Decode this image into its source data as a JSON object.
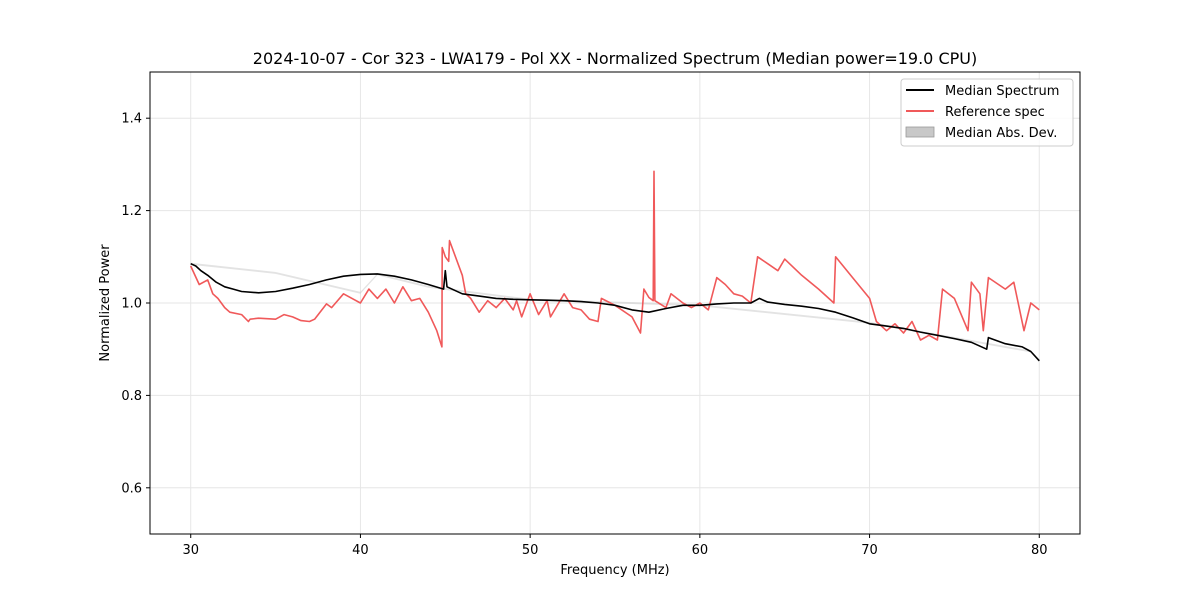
{
  "chart_data": {
    "type": "line",
    "title": "2024-10-07 - Cor 323 - LWA179 - Pol XX - Normalized Spectrum (Median power=19.0 CPU)",
    "xlabel": "Frequency (MHz)",
    "ylabel": "Normalized Power",
    "xlim": [
      27.6,
      82.4
    ],
    "ylim": [
      0.5,
      1.5
    ],
    "xticks": [
      30,
      40,
      50,
      60,
      70,
      80
    ],
    "yticks": [
      0.6,
      0.8,
      1.0,
      1.2,
      1.4
    ],
    "xtick_labels": [
      "30",
      "40",
      "50",
      "60",
      "70",
      "80"
    ],
    "ytick_labels": [
      "0.6",
      "0.8",
      "1.0",
      "1.2",
      "1.4"
    ],
    "grid": true,
    "legend_position": "top-right",
    "legend": [
      "Median Spectrum",
      "Reference spec",
      "Median Abs. Dev."
    ],
    "colors": {
      "median": "#000000",
      "reference": "#f0595a",
      "mad": "#c8c8c8"
    },
    "series": [
      {
        "name": "Median Spectrum",
        "x": [
          30,
          30.3,
          30.6,
          31,
          31.5,
          32,
          32.5,
          33,
          34,
          35,
          36,
          37,
          38,
          39,
          40,
          41,
          42,
          43,
          44,
          44.9,
          45,
          45.1,
          46,
          47,
          48,
          49,
          50,
          51,
          52,
          53,
          54,
          55,
          56,
          57,
          58,
          59,
          60,
          61,
          62,
          63,
          63.5,
          64,
          65,
          66,
          67,
          68,
          69,
          70,
          71,
          72,
          73,
          74,
          75,
          76,
          76.9,
          77,
          78,
          79,
          79.5,
          80
        ],
        "values": [
          1.085,
          1.08,
          1.07,
          1.06,
          1.045,
          1.035,
          1.03,
          1.025,
          1.022,
          1.025,
          1.032,
          1.04,
          1.05,
          1.058,
          1.062,
          1.063,
          1.058,
          1.05,
          1.04,
          1.03,
          1.07,
          1.035,
          1.02,
          1.015,
          1.01,
          1.008,
          1.007,
          1.006,
          1.005,
          1.003,
          1.0,
          0.995,
          0.985,
          0.98,
          0.988,
          0.995,
          0.995,
          0.998,
          1.0,
          1.0,
          1.01,
          1.002,
          0.997,
          0.993,
          0.988,
          0.98,
          0.968,
          0.955,
          0.95,
          0.945,
          0.937,
          0.93,
          0.923,
          0.915,
          0.9,
          0.925,
          0.912,
          0.905,
          0.895,
          0.875
        ]
      },
      {
        "name": "Reference spec",
        "x": [
          30,
          30.5,
          31,
          31.3,
          31.6,
          32,
          32.3,
          33,
          33.4,
          33.5,
          34,
          35,
          35.5,
          36,
          36.5,
          37,
          37.3,
          38,
          38.3,
          39,
          39.5,
          40,
          40.5,
          41,
          41.5,
          42,
          42.5,
          43,
          43.5,
          44,
          44.5,
          44.8,
          44.82,
          45,
          45.2,
          45.25,
          46,
          46.2,
          46.5,
          47,
          47.5,
          48,
          48.5,
          49,
          49.2,
          49.5,
          50,
          50.5,
          51,
          51.2,
          52,
          52.5,
          53,
          53.5,
          54,
          54.2,
          55,
          56,
          56.5,
          56.7,
          57,
          57.25,
          57.3,
          57.35,
          58,
          58.3,
          59,
          59.5,
          60,
          60.5,
          61,
          61.5,
          62,
          62.5,
          63,
          63.4,
          64,
          64.6,
          65,
          66,
          67,
          67.9,
          68,
          69,
          70,
          70.4,
          71,
          71.5,
          72,
          72.5,
          73,
          73.5,
          74,
          74.3,
          75,
          75.8,
          76,
          76.5,
          76.7,
          77,
          78,
          78.5,
          79.1,
          79.5,
          80
        ],
        "values": [
          1.08,
          1.04,
          1.05,
          1.02,
          1.01,
          0.99,
          0.98,
          0.975,
          0.96,
          0.965,
          0.967,
          0.965,
          0.975,
          0.97,
          0.962,
          0.96,
          0.965,
          0.998,
          0.99,
          1.02,
          1.01,
          1.0,
          1.03,
          1.01,
          1.03,
          1.0,
          1.035,
          1.005,
          1.01,
          0.98,
          0.94,
          0.905,
          1.12,
          1.1,
          1.09,
          1.135,
          1.06,
          1.02,
          1.01,
          0.98,
          1.005,
          0.99,
          1.01,
          0.985,
          1.005,
          0.97,
          1.02,
          0.975,
          1.005,
          0.97,
          1.02,
          0.99,
          0.985,
          0.965,
          0.96,
          1.01,
          0.995,
          0.97,
          0.935,
          1.03,
          1.012,
          1.005,
          1.285,
          1.005,
          0.99,
          1.02,
          1.0,
          0.99,
          1.0,
          0.985,
          1.055,
          1.04,
          1.02,
          1.015,
          1.0,
          1.1,
          1.085,
          1.07,
          1.095,
          1.06,
          1.03,
          1.0,
          1.1,
          1.055,
          1.01,
          0.96,
          0.94,
          0.955,
          0.935,
          0.96,
          0.92,
          0.93,
          0.92,
          1.03,
          1.01,
          0.94,
          1.045,
          1.02,
          0.94,
          1.055,
          1.03,
          1.045,
          0.94,
          1.0,
          0.985
        ]
      },
      {
        "name": "Median Abs. Dev.",
        "lower": [
          1.083,
          1.063,
          1.02,
          1.06,
          1.033,
          1.005,
          0.993,
          0.955,
          0.893,
          0.872
        ],
        "upper": [
          1.087,
          1.067,
          1.024,
          1.064,
          1.037,
          1.009,
          0.997,
          0.959,
          0.897,
          0.878
        ],
        "x": [
          30,
          35,
          40,
          41,
          44,
          50,
          60,
          70,
          79.5,
          80
        ]
      }
    ]
  }
}
